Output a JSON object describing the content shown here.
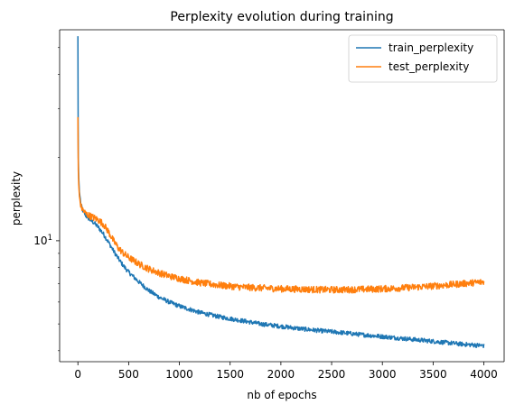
{
  "chart_data": {
    "type": "line",
    "title": "Perplexity evolution during training",
    "xlabel": "nb of epochs",
    "ylabel": "perplexity",
    "xlim": [
      -180,
      4200
    ],
    "ylim": [
      3.65,
      58
    ],
    "yscale": "log",
    "grid": false,
    "legend_position": "top-right",
    "x_ticks": [
      0,
      500,
      1000,
      1500,
      2000,
      2500,
      3000,
      3500,
      4000
    ],
    "x_tick_labels": [
      "0",
      "500",
      "1000",
      "1500",
      "2000",
      "2500",
      "3000",
      "3500",
      "4000"
    ],
    "y_major_ticks": [
      10
    ],
    "y_major_tick_labels": [
      "10"
    ],
    "y_minor_ticks": [
      4,
      5,
      6,
      7,
      8,
      9,
      20,
      30,
      40,
      50
    ],
    "series": [
      {
        "name": "train_perplexity",
        "color": "#1f77b4",
        "points": [
          [
            0,
            55
          ],
          [
            2,
            30
          ],
          [
            4,
            20
          ],
          [
            8,
            17
          ],
          [
            15,
            15
          ],
          [
            30,
            13.5
          ],
          [
            50,
            12.8
          ],
          [
            80,
            12.3
          ],
          [
            120,
            11.9
          ],
          [
            160,
            11.6
          ],
          [
            200,
            11.2
          ],
          [
            250,
            10.6
          ],
          [
            300,
            9.9
          ],
          [
            350,
            9.2
          ],
          [
            400,
            8.6
          ],
          [
            450,
            8.1
          ],
          [
            500,
            7.7
          ],
          [
            600,
            7.1
          ],
          [
            700,
            6.6
          ],
          [
            800,
            6.25
          ],
          [
            900,
            6.0
          ],
          [
            1000,
            5.8
          ],
          [
            1200,
            5.5
          ],
          [
            1400,
            5.3
          ],
          [
            1600,
            5.15
          ],
          [
            1800,
            5.0
          ],
          [
            2000,
            4.9
          ],
          [
            2200,
            4.8
          ],
          [
            2400,
            4.72
          ],
          [
            2600,
            4.65
          ],
          [
            2800,
            4.57
          ],
          [
            3000,
            4.5
          ],
          [
            3200,
            4.43
          ],
          [
            3400,
            4.36
          ],
          [
            3600,
            4.29
          ],
          [
            3800,
            4.22
          ],
          [
            4000,
            4.17
          ]
        ]
      },
      {
        "name": "test_perplexity",
        "color": "#ff7f0e",
        "points": [
          [
            0,
            28
          ],
          [
            2,
            22
          ],
          [
            4,
            18
          ],
          [
            8,
            16
          ],
          [
            15,
            14.5
          ],
          [
            30,
            13.3
          ],
          [
            50,
            12.9
          ],
          [
            80,
            12.5
          ],
          [
            120,
            12.3
          ],
          [
            160,
            12.1
          ],
          [
            200,
            11.9
          ],
          [
            250,
            11.5
          ],
          [
            300,
            10.8
          ],
          [
            350,
            10.0
          ],
          [
            400,
            9.4
          ],
          [
            450,
            9.0
          ],
          [
            500,
            8.7
          ],
          [
            600,
            8.25
          ],
          [
            700,
            7.9
          ],
          [
            800,
            7.65
          ],
          [
            900,
            7.45
          ],
          [
            1000,
            7.3
          ],
          [
            1200,
            7.05
          ],
          [
            1400,
            6.9
          ],
          [
            1600,
            6.8
          ],
          [
            1800,
            6.75
          ],
          [
            2000,
            6.7
          ],
          [
            2200,
            6.68
          ],
          [
            2400,
            6.65
          ],
          [
            2600,
            6.65
          ],
          [
            2800,
            6.67
          ],
          [
            3000,
            6.7
          ],
          [
            3200,
            6.75
          ],
          [
            3400,
            6.82
          ],
          [
            3600,
            6.9
          ],
          [
            3800,
            7.0
          ],
          [
            4000,
            7.1
          ]
        ]
      }
    ]
  }
}
